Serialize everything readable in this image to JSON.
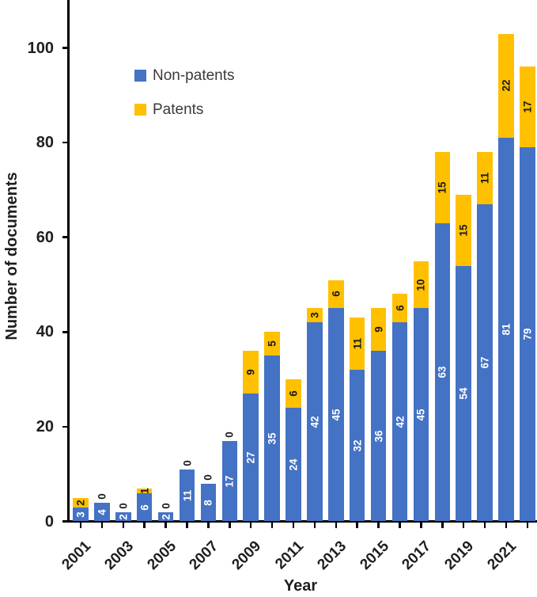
{
  "chart_data": {
    "type": "bar",
    "stacked": true,
    "xlabel": "Year",
    "ylabel": "Number of documents",
    "categories": [
      "2001",
      "2002",
      "2003",
      "2004",
      "2005",
      "2006",
      "2007",
      "2008",
      "2009",
      "2010",
      "2011",
      "2012",
      "2013",
      "2014",
      "2015",
      "2016",
      "2017",
      "2018",
      "2019",
      "2020",
      "2021",
      "2022"
    ],
    "x_tick_label_step": 2,
    "series": [
      {
        "name": "Non-patents",
        "color": "#4472C4",
        "label_color": "#FFFFFF",
        "values": [
          3,
          4,
          2,
          6,
          2,
          11,
          8,
          17,
          27,
          35,
          24,
          42,
          45,
          32,
          36,
          42,
          45,
          63,
          54,
          67,
          81,
          79
        ]
      },
      {
        "name": "Patents",
        "color": "#FFC000",
        "label_color": "#1A1A1A",
        "values": [
          2,
          0,
          0,
          1,
          0,
          0,
          0,
          0,
          9,
          5,
          6,
          3,
          6,
          11,
          9,
          6,
          10,
          15,
          15,
          11,
          22,
          17
        ]
      }
    ],
    "totals": [
      5,
      4,
      2,
      7,
      2,
      11,
      8,
      17,
      36,
      40,
      30,
      45,
      51,
      43,
      45,
      48,
      55,
      78,
      69,
      78,
      103,
      96
    ],
    "y_ticks": [
      0,
      20,
      40,
      60,
      80,
      100
    ],
    "ylim": [
      0,
      110
    ],
    "grid": false,
    "legend_position": "inside-upper-left",
    "axis_color": "#000000",
    "data_labels": "shown, rotated vertical; zero-value Patents labels drawn above bar top"
  }
}
